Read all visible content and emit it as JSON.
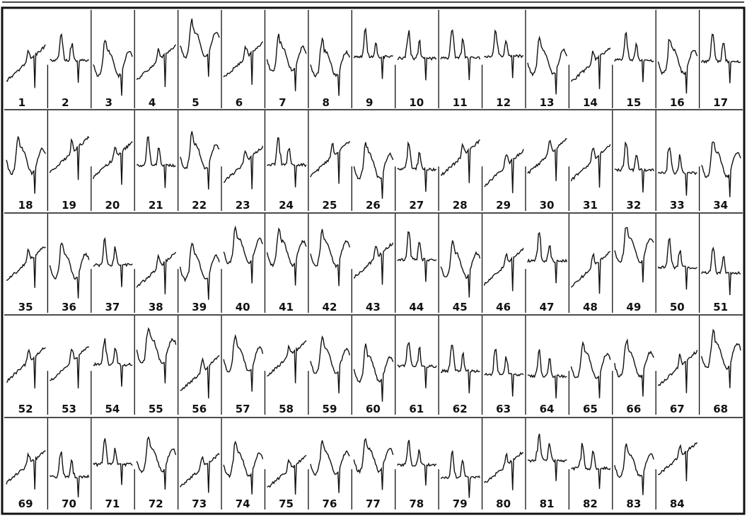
{
  "figure": {
    "rows": [
      {
        "labels": [
          "1",
          "2",
          "3",
          "4",
          "5",
          "6",
          "7",
          "8",
          "9",
          "10",
          "11",
          "12",
          "13",
          "14",
          "15",
          "16",
          "17"
        ]
      },
      {
        "labels": [
          "18",
          "19",
          "20",
          "21",
          "22",
          "23",
          "24",
          "25",
          "26",
          "27",
          "28",
          "29",
          "30",
          "31",
          "32",
          "33",
          "34"
        ]
      },
      {
        "labels": [
          "35",
          "36",
          "37",
          "38",
          "39",
          "40",
          "41",
          "42",
          "43",
          "44",
          "45",
          "46",
          "47",
          "48",
          "49",
          "50",
          "51"
        ]
      },
      {
        "labels": [
          "52",
          "53",
          "54",
          "55",
          "56",
          "57",
          "58",
          "59",
          "60",
          "61",
          "62",
          "63",
          "64",
          "65",
          "66",
          "67",
          "68"
        ]
      },
      {
        "labels": [
          "69",
          "70",
          "71",
          "72",
          "73",
          "74",
          "75",
          "76",
          "77",
          "78",
          "79",
          "80",
          "81",
          "82",
          "83",
          "84"
        ]
      }
    ],
    "colors": {
      "ink": "#111111",
      "paper": "#ffffff"
    }
  }
}
